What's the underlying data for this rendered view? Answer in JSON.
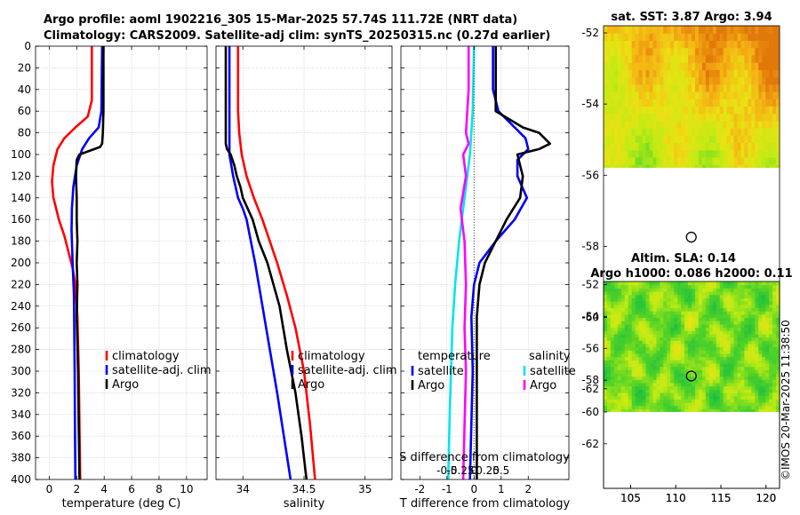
{
  "header": {
    "line1": "Argo profile: aoml 1902216_305 15-Mar-2025 57.74S 111.72E (NRT data)",
    "line2": "Climatology: CARS2009. Satellite-adj clim: synTS_20250315.nc (0.27d earlier)",
    "watermark": "©IMOS 20-Mar-2025 11:38:50"
  },
  "colors": {
    "climatology": "#ff0000",
    "satellite": "#0000ff",
    "argo": "#000000",
    "salinity_sat": "#00e5ee",
    "salinity_argo": "#ff00ff"
  },
  "chart_data": [
    {
      "id": "temperature",
      "type": "line",
      "xlabel": "temperature (deg C)",
      "ylabel": "depth",
      "xlim": [
        -1,
        11.5
      ],
      "ylim": [
        400,
        0
      ],
      "xticks": [
        0,
        2,
        4,
        6,
        8,
        10
      ],
      "yticks": [
        0,
        20,
        40,
        60,
        80,
        100,
        120,
        140,
        160,
        180,
        200,
        220,
        240,
        260,
        280,
        300,
        320,
        340,
        360,
        380,
        400
      ],
      "grid": true,
      "legend": [
        "climatology",
        "satellite-adj. clim",
        "Argo"
      ],
      "series": [
        {
          "name": "climatology",
          "color": "#ff0000",
          "depth": [
            0,
            50,
            65,
            75,
            85,
            95,
            110,
            125,
            140,
            150,
            160,
            175,
            190,
            205,
            220,
            250,
            300,
            350,
            400
          ],
          "values": [
            3.1,
            3.1,
            2.8,
            1.9,
            1.1,
            0.6,
            0.3,
            0.2,
            0.3,
            0.5,
            0.7,
            1.1,
            1.4,
            1.7,
            1.9,
            2.05,
            2.15,
            2.2,
            2.25
          ]
        },
        {
          "name": "satellite-adj. clim",
          "color": "#0000ff",
          "depth": [
            0,
            60,
            75,
            85,
            95,
            110,
            130,
            150,
            170,
            200,
            230,
            300,
            350,
            400
          ],
          "values": [
            3.85,
            3.8,
            3.6,
            2.9,
            2.4,
            2.0,
            1.75,
            1.65,
            1.62,
            1.7,
            1.8,
            1.85,
            1.87,
            1.9
          ]
        },
        {
          "name": "Argo",
          "color": "#000000",
          "depth": [
            0,
            60,
            80,
            90,
            93,
            100,
            105,
            120,
            140,
            160,
            180,
            200,
            220,
            250,
            300,
            350,
            400
          ],
          "values": [
            3.95,
            3.95,
            3.9,
            3.85,
            3.7,
            2.2,
            2.0,
            1.95,
            2.0,
            2.0,
            2.05,
            2.0,
            2.05,
            2.0,
            2.1,
            2.15,
            2.2
          ]
        }
      ]
    },
    {
      "id": "salinity",
      "type": "line",
      "xlabel": "salinity",
      "ylabel": "depth",
      "xlim": [
        33.78,
        35.22
      ],
      "ylim": [
        400,
        0
      ],
      "xticks": [
        34,
        34.5,
        35
      ],
      "xticklabels": [
        "34",
        "34.5",
        "35"
      ],
      "grid": true,
      "legend": [
        "climatology",
        "satellite-adj. clim",
        "Argo"
      ],
      "series": [
        {
          "name": "climatology",
          "color": "#ff0000",
          "depth": [
            0,
            40,
            60,
            80,
            100,
            120,
            140,
            160,
            180,
            200,
            230,
            260,
            300,
            350,
            400
          ],
          "values": [
            33.96,
            33.96,
            33.96,
            33.97,
            33.99,
            34.03,
            34.09,
            34.16,
            34.22,
            34.28,
            34.36,
            34.43,
            34.5,
            34.55,
            34.59
          ]
        },
        {
          "name": "satellite-adj. clim",
          "color": "#0000ff",
          "depth": [
            0,
            60,
            100,
            120,
            140,
            150,
            160,
            200,
            260,
            320,
            400
          ],
          "values": [
            33.89,
            33.89,
            33.89,
            33.92,
            33.96,
            34.0,
            34.03,
            34.1,
            34.19,
            34.28,
            34.39
          ]
        },
        {
          "name": "Argo",
          "color": "#000000",
          "depth": [
            0,
            80,
            90,
            95,
            100,
            110,
            120,
            130,
            140,
            160,
            180,
            200,
            240,
            280,
            320,
            360,
            400
          ],
          "values": [
            33.86,
            33.86,
            33.86,
            33.87,
            33.9,
            33.93,
            33.95,
            33.98,
            34.0,
            34.08,
            34.13,
            34.2,
            34.3,
            34.36,
            34.43,
            34.48,
            34.52
          ]
        }
      ]
    },
    {
      "id": "difference",
      "type": "line",
      "xlabel": "T difference from climatology",
      "top_label": "S difference from climatology",
      "xlim": [
        -2.7,
        3.5
      ],
      "ylim": [
        400,
        0
      ],
      "xticks": [
        -2,
        -1,
        0,
        1,
        2
      ],
      "xticklabels": [
        "-2",
        "-1",
        "0",
        "1",
        "2"
      ],
      "s_ticks": [
        -1,
        -0.5,
        0,
        0.5,
        1
      ],
      "s_ticklabels": [
        "-0.5",
        "-0.25",
        "0",
        "0.25",
        "0.5"
      ],
      "grid": true,
      "legend_left_title": "temperature",
      "legend_right_title": "salinity",
      "legend_left": [
        "satellite",
        "Argo"
      ],
      "legend_right": [
        "satellite",
        "Argo"
      ],
      "series": [
        {
          "name": "temperature satellite",
          "color": "#0000ff",
          "depth": [
            0,
            40,
            60,
            75,
            85,
            95,
            105,
            120,
            140,
            160,
            180,
            200,
            220,
            250,
            300,
            400
          ],
          "values": [
            0.7,
            0.7,
            0.9,
            1.5,
            1.9,
            2.0,
            1.6,
            1.6,
            1.95,
            1.5,
            0.8,
            0.2,
            0.0,
            -0.1,
            -0.05,
            -0.15
          ]
        },
        {
          "name": "temperature Argo",
          "color": "#000000",
          "depth": [
            0,
            60,
            75,
            80,
            90,
            95,
            100,
            110,
            120,
            140,
            160,
            180,
            200,
            220,
            250,
            300,
            400
          ],
          "values": [
            0.8,
            0.8,
            1.8,
            2.4,
            2.8,
            2.4,
            1.6,
            1.7,
            1.8,
            1.7,
            1.2,
            0.8,
            0.4,
            0.2,
            0.1,
            0.1,
            0.1
          ]
        },
        {
          "name": "salinity satellite",
          "color": "#00e5ee",
          "depth": [
            0,
            60,
            100,
            140,
            180,
            220,
            260,
            300,
            340,
            400
          ],
          "values": [
            0.0,
            -0.05,
            -0.15,
            -0.35,
            -0.55,
            -0.7,
            -0.8,
            -0.85,
            -0.9,
            -0.95
          ]
        },
        {
          "name": "salinity Argo",
          "color": "#ff00ff",
          "depth": [
            0,
            40,
            60,
            80,
            90,
            100,
            120,
            150,
            180,
            220,
            260,
            300,
            350,
            400
          ],
          "values": [
            -0.2,
            -0.2,
            -0.25,
            -0.3,
            -0.2,
            -0.4,
            -0.3,
            -0.5,
            -0.35,
            -0.3,
            -0.35,
            -0.3,
            -0.35,
            -0.4
          ]
        }
      ]
    },
    {
      "id": "sst_map",
      "type": "heatmap",
      "title": "sat. SST: 3.87 Argo: 3.94",
      "xlim": [
        102,
        121.5
      ],
      "ylim": [
        -64.8,
        -51.8
      ],
      "xticks": [
        105,
        110,
        115,
        120
      ],
      "yticks": [
        -52,
        -54,
        -56,
        -58,
        -60,
        -62
      ],
      "data_ylim": [
        -60,
        -51.8
      ],
      "float_lon": 111.72,
      "float_lat": -57.74
    },
    {
      "id": "sla_map",
      "type": "heatmap",
      "title_line1": "Altim. SLA: 0.14",
      "title_line2": "Argo h1000: 0.086 h2000: 0.11",
      "xlim": [
        102,
        121.5
      ],
      "ylim": [
        -64.8,
        -51.8
      ],
      "xticks": [
        105,
        110,
        115,
        120
      ],
      "yticks": [
        -52,
        -54,
        -56,
        -58,
        -60,
        -62
      ],
      "data_ylim": [
        -60,
        -51.8
      ],
      "float_lon": 111.72,
      "float_lat": -57.74
    }
  ]
}
